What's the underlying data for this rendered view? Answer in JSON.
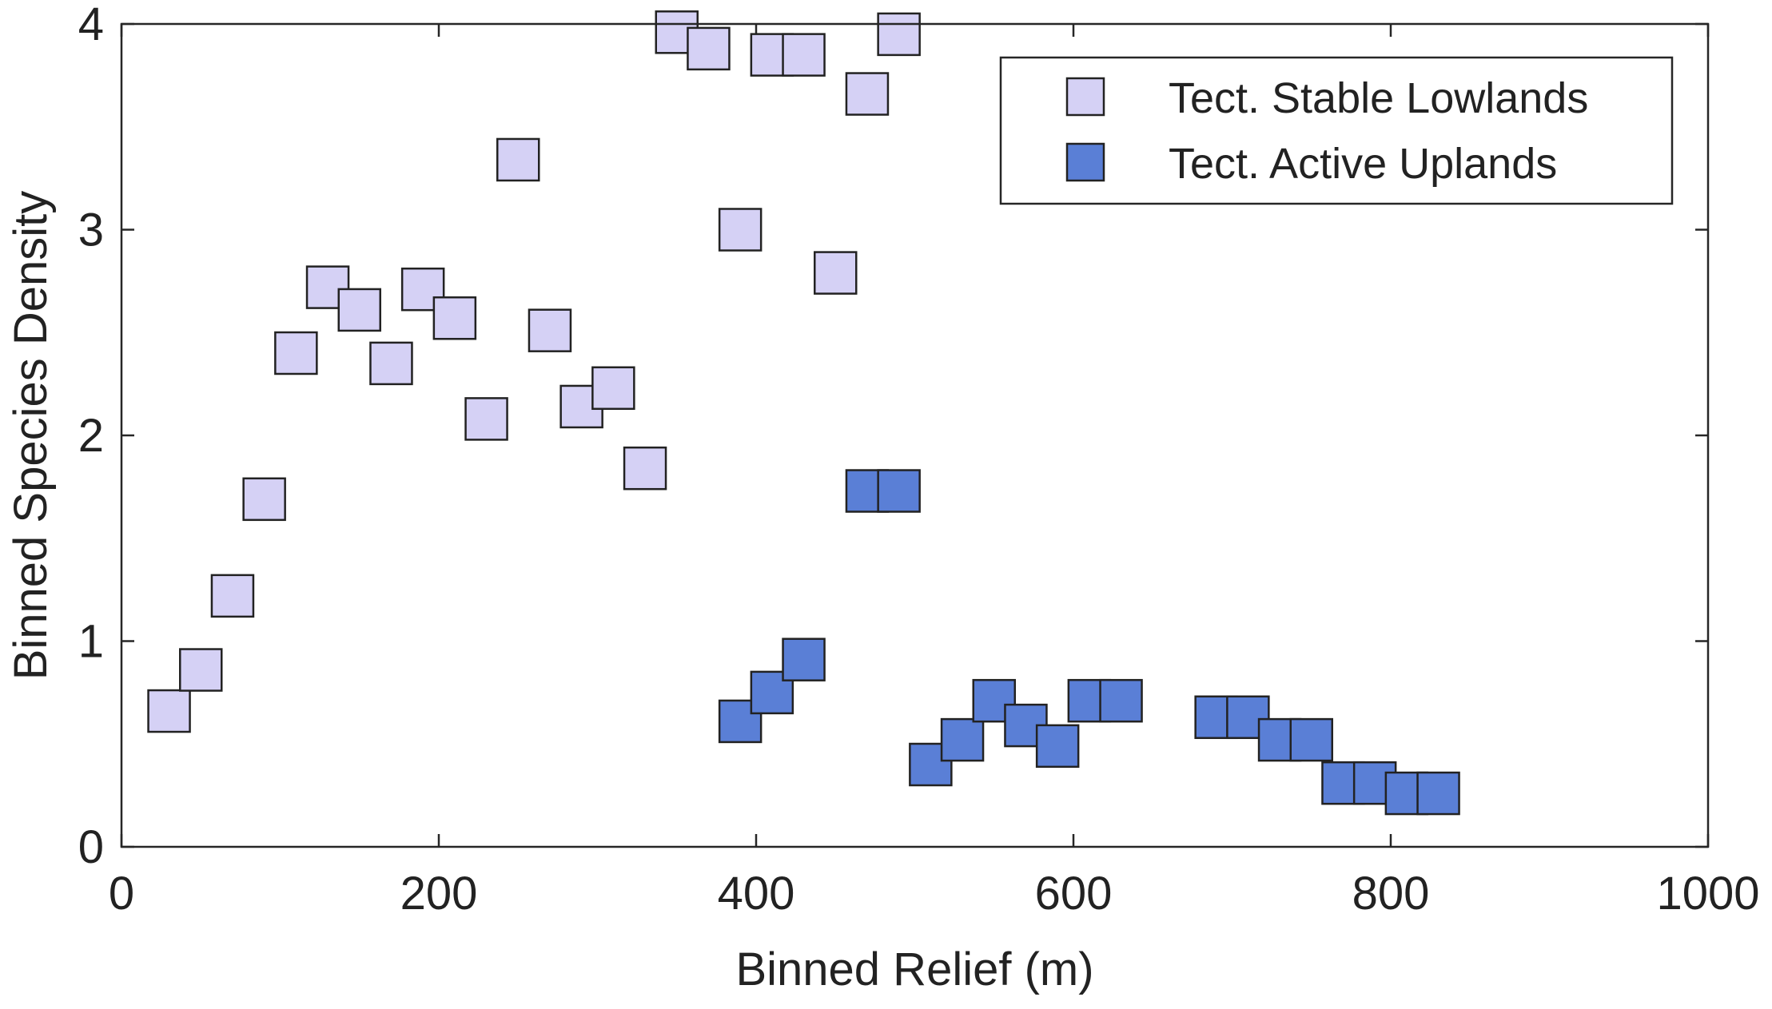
{
  "chart_data": {
    "type": "scatter",
    "title": "",
    "xlabel": "Binned Relief (m)",
    "ylabel": "Binned Species Density",
    "xlim": [
      0,
      1000
    ],
    "ylim": [
      0,
      4
    ],
    "xticks": [
      0,
      200,
      400,
      600,
      800,
      1000
    ],
    "yticks": [
      0,
      1,
      2,
      3,
      4
    ],
    "xtick_labels": [
      "0",
      "200",
      "400",
      "600",
      "800",
      "1000"
    ],
    "ytick_labels": [
      "0",
      "1",
      "2",
      "3",
      "4"
    ],
    "grid": false,
    "legend_position": "top-right",
    "series": [
      {
        "name": "Tect. Stable Lowlands",
        "color": "#d5d1f5",
        "marker": "square",
        "points": [
          {
            "x": 30,
            "y": 0.66
          },
          {
            "x": 50,
            "y": 0.86
          },
          {
            "x": 70,
            "y": 1.22
          },
          {
            "x": 90,
            "y": 1.69
          },
          {
            "x": 110,
            "y": 2.4
          },
          {
            "x": 130,
            "y": 2.72
          },
          {
            "x": 150,
            "y": 2.61
          },
          {
            "x": 170,
            "y": 2.35
          },
          {
            "x": 190,
            "y": 2.71
          },
          {
            "x": 210,
            "y": 2.57
          },
          {
            "x": 230,
            "y": 2.08
          },
          {
            "x": 250,
            "y": 3.34
          },
          {
            "x": 270,
            "y": 2.51
          },
          {
            "x": 290,
            "y": 2.14
          },
          {
            "x": 310,
            "y": 2.23
          },
          {
            "x": 330,
            "y": 1.84
          },
          {
            "x": 350,
            "y": 3.96
          },
          {
            "x": 370,
            "y": 3.88
          },
          {
            "x": 390,
            "y": 3.0
          },
          {
            "x": 410,
            "y": 3.85
          },
          {
            "x": 430,
            "y": 3.85
          },
          {
            "x": 450,
            "y": 2.79
          },
          {
            "x": 470,
            "y": 3.66
          },
          {
            "x": 490,
            "y": 3.95
          }
        ]
      },
      {
        "name": "Tect. Active Uplands",
        "color": "#5a7fd6",
        "marker": "square",
        "points": [
          {
            "x": 390,
            "y": 0.61
          },
          {
            "x": 410,
            "y": 0.75
          },
          {
            "x": 430,
            "y": 0.91
          },
          {
            "x": 470,
            "y": 1.73
          },
          {
            "x": 490,
            "y": 1.73
          },
          {
            "x": 510,
            "y": 0.4
          },
          {
            "x": 530,
            "y": 0.52
          },
          {
            "x": 550,
            "y": 0.71
          },
          {
            "x": 570,
            "y": 0.59
          },
          {
            "x": 590,
            "y": 0.49
          },
          {
            "x": 610,
            "y": 0.71
          },
          {
            "x": 630,
            "y": 0.71
          },
          {
            "x": 690,
            "y": 0.63
          },
          {
            "x": 710,
            "y": 0.63
          },
          {
            "x": 730,
            "y": 0.52
          },
          {
            "x": 750,
            "y": 0.52
          },
          {
            "x": 770,
            "y": 0.31
          },
          {
            "x": 790,
            "y": 0.31
          },
          {
            "x": 810,
            "y": 0.26
          },
          {
            "x": 830,
            "y": 0.26
          }
        ]
      }
    ]
  }
}
